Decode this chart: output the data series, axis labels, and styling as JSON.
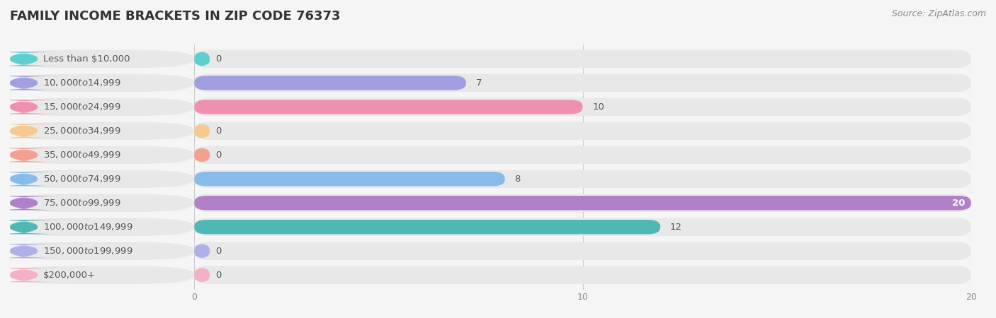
{
  "title": "FAMILY INCOME BRACKETS IN ZIP CODE 76373",
  "source": "Source: ZipAtlas.com",
  "categories": [
    "Less than $10,000",
    "$10,000 to $14,999",
    "$15,000 to $24,999",
    "$25,000 to $34,999",
    "$35,000 to $49,999",
    "$50,000 to $74,999",
    "$75,000 to $99,999",
    "$100,000 to $149,999",
    "$150,000 to $199,999",
    "$200,000+"
  ],
  "values": [
    0,
    7,
    10,
    0,
    0,
    8,
    20,
    12,
    0,
    0
  ],
  "bar_colors": [
    "#5ecece",
    "#a0a0e0",
    "#f090b0",
    "#f5c990",
    "#f4a090",
    "#88bce8",
    "#b080c8",
    "#50b8b4",
    "#b0b0e8",
    "#f4b0c4"
  ],
  "xlim": [
    0,
    20
  ],
  "xticks": [
    0,
    10,
    20
  ],
  "background_color": "#f5f5f5",
  "bar_bg_color": "#e8e8e8",
  "title_fontsize": 13,
  "label_fontsize": 9.5,
  "value_fontsize": 9.5,
  "source_fontsize": 9
}
